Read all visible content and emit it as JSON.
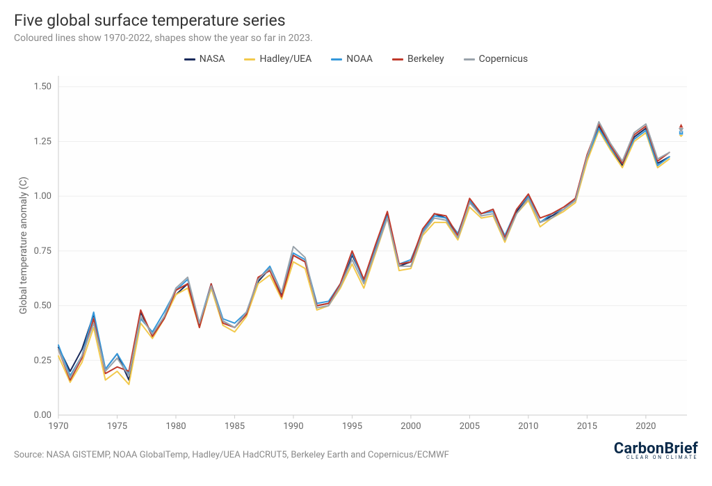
{
  "title": "Five global surface temperature series",
  "subtitle": "Coloured lines show 1970-2022, shapes show the year so far in 2023.",
  "source": "Source: NASA GISTEMP, NOAA GlobalTemp, Hadley/UEA HadCRUT5, Berkeley Earth and Copernicus/ECMWF",
  "logo": {
    "main": "CarbonBrief",
    "sub": "CLEAR ON CLIMATE"
  },
  "chart": {
    "type": "line",
    "ylabel": "Global temperature anomaly (C)",
    "background_color": "#fefefe",
    "grid_color": "#eeeeee",
    "axis_line_color": "#cccccc",
    "tick_fontsize": 13,
    "label_fontsize": 14,
    "xlim": [
      1970,
      2023.5
    ],
    "ylim": [
      0.0,
      1.55
    ],
    "xtick_step": 5,
    "xtick_start": 1970,
    "ytick_step": 0.25,
    "years": [
      1970,
      1971,
      1972,
      1973,
      1974,
      1975,
      1976,
      1977,
      1978,
      1979,
      1980,
      1981,
      1982,
      1983,
      1984,
      1985,
      1986,
      1987,
      1988,
      1989,
      1990,
      1991,
      1992,
      1993,
      1994,
      1995,
      1996,
      1997,
      1998,
      1999,
      2000,
      2001,
      2002,
      2003,
      2004,
      2005,
      2006,
      2007,
      2008,
      2009,
      2010,
      2011,
      2012,
      2013,
      2014,
      2015,
      2016,
      2017,
      2018,
      2019,
      2020,
      2021,
      2022
    ],
    "series": [
      {
        "name": "NASA",
        "color": "#1a2b5c",
        "line_width": 2,
        "values": [
          0.31,
          0.2,
          0.3,
          0.46,
          0.21,
          0.28,
          0.16,
          0.47,
          0.36,
          0.45,
          0.55,
          0.6,
          0.41,
          0.58,
          0.43,
          0.4,
          0.46,
          0.61,
          0.67,
          0.55,
          0.73,
          0.7,
          0.5,
          0.51,
          0.59,
          0.73,
          0.62,
          0.76,
          0.92,
          0.68,
          0.7,
          0.83,
          0.92,
          0.9,
          0.82,
          0.97,
          0.92,
          0.94,
          0.81,
          0.93,
          1.0,
          0.88,
          0.91,
          0.94,
          0.98,
          1.17,
          1.32,
          1.22,
          1.14,
          1.27,
          1.31,
          1.15,
          1.18
        ],
        "marker": {
          "x": 2023,
          "y": 1.29,
          "shape": "circle",
          "size": 6
        }
      },
      {
        "name": "Hadley/UEA",
        "color": "#f2c94c",
        "line_width": 2,
        "values": [
          0.27,
          0.15,
          0.24,
          0.4,
          0.16,
          0.2,
          0.14,
          0.42,
          0.35,
          0.44,
          0.55,
          0.58,
          0.4,
          0.58,
          0.41,
          0.38,
          0.45,
          0.6,
          0.64,
          0.53,
          0.7,
          0.67,
          0.48,
          0.5,
          0.58,
          0.69,
          0.58,
          0.74,
          0.9,
          0.66,
          0.67,
          0.82,
          0.88,
          0.88,
          0.8,
          0.95,
          0.9,
          0.91,
          0.79,
          0.92,
          0.98,
          0.86,
          0.9,
          0.93,
          0.97,
          1.16,
          1.3,
          1.21,
          1.13,
          1.25,
          1.29,
          1.13,
          1.17
        ],
        "marker": {
          "x": 2023,
          "y": 1.28,
          "shape": "diamond",
          "size": 7
        }
      },
      {
        "name": "NOAA",
        "color": "#3498db",
        "line_width": 2,
        "values": [
          0.32,
          0.18,
          0.27,
          0.47,
          0.21,
          0.28,
          0.19,
          0.44,
          0.38,
          0.47,
          0.57,
          0.62,
          0.42,
          0.6,
          0.44,
          0.42,
          0.47,
          0.62,
          0.68,
          0.56,
          0.74,
          0.71,
          0.51,
          0.52,
          0.6,
          0.74,
          0.61,
          0.77,
          0.91,
          0.69,
          0.71,
          0.84,
          0.91,
          0.9,
          0.83,
          0.98,
          0.92,
          0.93,
          0.82,
          0.94,
          1.0,
          0.88,
          0.92,
          0.94,
          0.99,
          1.18,
          1.31,
          1.22,
          1.15,
          1.26,
          1.3,
          1.14,
          1.18
        ],
        "marker": {
          "x": 2023,
          "y": 1.29,
          "shape": "square",
          "size": 6
        }
      },
      {
        "name": "Berkeley",
        "color": "#c0392b",
        "line_width": 2,
        "values": [
          0.3,
          0.16,
          0.26,
          0.44,
          0.19,
          0.22,
          0.2,
          0.48,
          0.36,
          0.44,
          0.57,
          0.6,
          0.4,
          0.6,
          0.42,
          0.4,
          0.46,
          0.63,
          0.66,
          0.54,
          0.73,
          0.7,
          0.5,
          0.51,
          0.6,
          0.75,
          0.62,
          0.78,
          0.93,
          0.69,
          0.7,
          0.85,
          0.92,
          0.91,
          0.82,
          0.99,
          0.92,
          0.94,
          0.81,
          0.94,
          1.01,
          0.9,
          0.92,
          0.95,
          0.99,
          1.19,
          1.33,
          1.23,
          1.15,
          1.28,
          1.32,
          1.16,
          1.2
        ],
        "marker": {
          "x": 2023,
          "y": 1.32,
          "shape": "triangle",
          "size": 8
        }
      },
      {
        "name": "Copernicus",
        "color": "#9aa3ab",
        "line_width": 2,
        "values": [
          0.3,
          0.17,
          0.27,
          0.42,
          0.2,
          0.26,
          0.18,
          0.45,
          0.37,
          0.45,
          0.58,
          0.63,
          0.42,
          0.59,
          0.43,
          0.4,
          0.47,
          0.62,
          0.67,
          0.56,
          0.77,
          0.72,
          0.49,
          0.5,
          0.59,
          0.71,
          0.6,
          0.75,
          0.9,
          0.68,
          0.68,
          0.83,
          0.9,
          0.89,
          0.81,
          0.97,
          0.91,
          0.92,
          0.8,
          0.92,
          0.99,
          0.88,
          0.9,
          0.94,
          0.98,
          1.18,
          1.34,
          1.24,
          1.16,
          1.29,
          1.33,
          1.17,
          1.2
        ],
        "marker": {
          "x": 2023,
          "y": 1.3,
          "shape": "invtriangle",
          "size": 8
        }
      }
    ]
  }
}
